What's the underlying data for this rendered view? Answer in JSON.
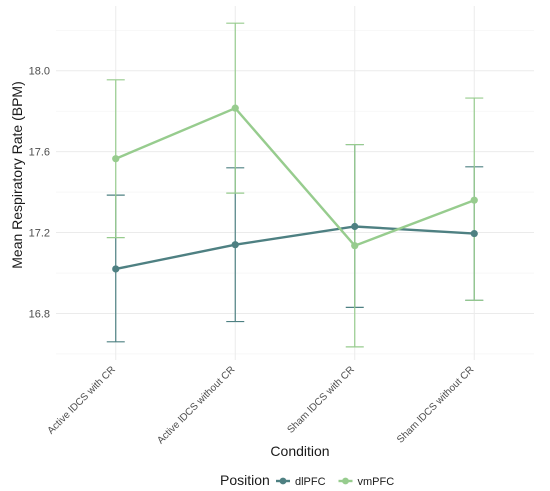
{
  "chart_data": {
    "type": "line",
    "xlabel": "Condition",
    "ylabel": "Mean Respiratory Rate (BPM)",
    "categories": [
      "Active lDCS with CR",
      "Active lDCS without CR",
      "Sham lDCS with CR",
      "Sham lDCS without CR"
    ],
    "y_ticks": [
      16.8,
      17.2,
      17.6,
      18.0
    ],
    "ylim": [
      16.57,
      18.32
    ],
    "grid": true,
    "legend": {
      "title": "Position",
      "placement": "bottom"
    },
    "series": [
      {
        "name": "dlPFC",
        "color": "#4e8082",
        "values": [
          17.02,
          17.14,
          17.23,
          17.195
        ],
        "error_low": [
          16.66,
          16.76,
          16.83,
          16.865
        ],
        "error_high": [
          17.385,
          17.52,
          17.635,
          17.525
        ]
      },
      {
        "name": "vmPFC",
        "color": "#97cc8e",
        "values": [
          17.565,
          17.815,
          17.135,
          17.36
        ],
        "error_low": [
          17.175,
          17.395,
          16.635,
          16.865
        ],
        "error_high": [
          17.955,
          18.235,
          17.635,
          17.865
        ]
      }
    ]
  }
}
